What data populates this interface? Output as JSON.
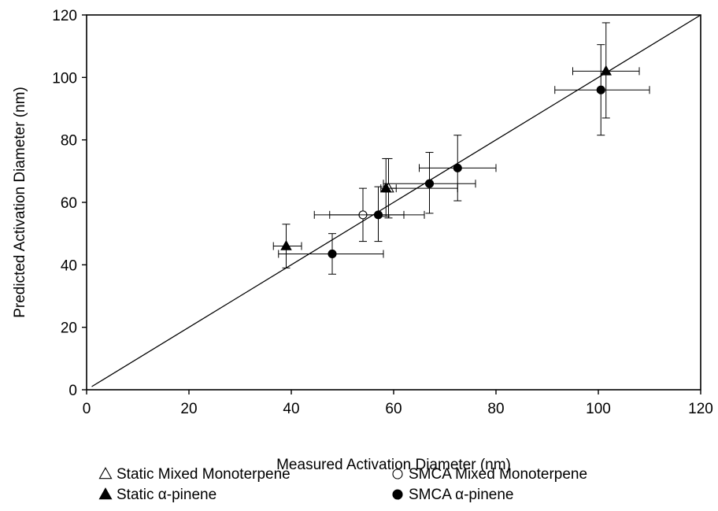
{
  "chart_data": {
    "type": "scatter",
    "xlabel": "Measured Activation Diameter (nm)",
    "ylabel": "Predicted Activation Diameter (nm)",
    "xlim": [
      0,
      120
    ],
    "ylim": [
      0,
      120
    ],
    "x_ticks": [
      "0",
      "20",
      "40",
      "60",
      "80",
      "100",
      "120"
    ],
    "y_ticks": [
      "0",
      "20",
      "40",
      "60",
      "80",
      "100",
      "120"
    ],
    "grid": false,
    "legend_position": "bottom",
    "reference_line": {
      "kind": "1:1",
      "from": [
        1,
        1
      ],
      "to": [
        120,
        120
      ]
    },
    "series": [
      {
        "name": "Static Mixed Monoterpene",
        "marker": "triangle-open",
        "points": [
          {
            "x": 59,
            "y": 64.5,
            "xerr": [
              58.5,
              60.5
            ],
            "yerr": [
              55,
              74
            ]
          }
        ]
      },
      {
        "name": "SMCA Mixed Monoterpene",
        "marker": "circle-open",
        "points": [
          {
            "x": 54,
            "y": 56,
            "xerr": [
              44.5,
              62
            ],
            "yerr": [
              47.5,
              64.5
            ]
          }
        ]
      },
      {
        "name": "Static α-pinene",
        "marker": "triangle-filled",
        "points": [
          {
            "x": 39,
            "y": 46,
            "xerr": [
              36.5,
              42
            ],
            "yerr": [
              39,
              53
            ]
          },
          {
            "x": 58.5,
            "y": 64.5,
            "xerr": [
              57.5,
              72.5
            ],
            "yerr": [
              55.5,
              74
            ]
          },
          {
            "x": 101.5,
            "y": 102,
            "xerr": [
              95,
              108
            ],
            "yerr": [
              87,
              117.5
            ]
          }
        ]
      },
      {
        "name": "SMCA α-pinene",
        "marker": "circle-filled",
        "points": [
          {
            "x": 48,
            "y": 43.5,
            "xerr": [
              37.5,
              58
            ],
            "yerr": [
              37,
              50
            ]
          },
          {
            "x": 57,
            "y": 56,
            "xerr": [
              47.5,
              66
            ],
            "yerr": [
              47.5,
              65
            ]
          },
          {
            "x": 67,
            "y": 66,
            "xerr": [
              58,
              76
            ],
            "yerr": [
              56.5,
              76
            ]
          },
          {
            "x": 72.5,
            "y": 71,
            "xerr": [
              65,
              80
            ],
            "yerr": [
              60.5,
              81.5
            ]
          },
          {
            "x": 100.5,
            "y": 96,
            "xerr": [
              91.5,
              110
            ],
            "yerr": [
              81.5,
              110.5
            ]
          }
        ]
      }
    ]
  }
}
